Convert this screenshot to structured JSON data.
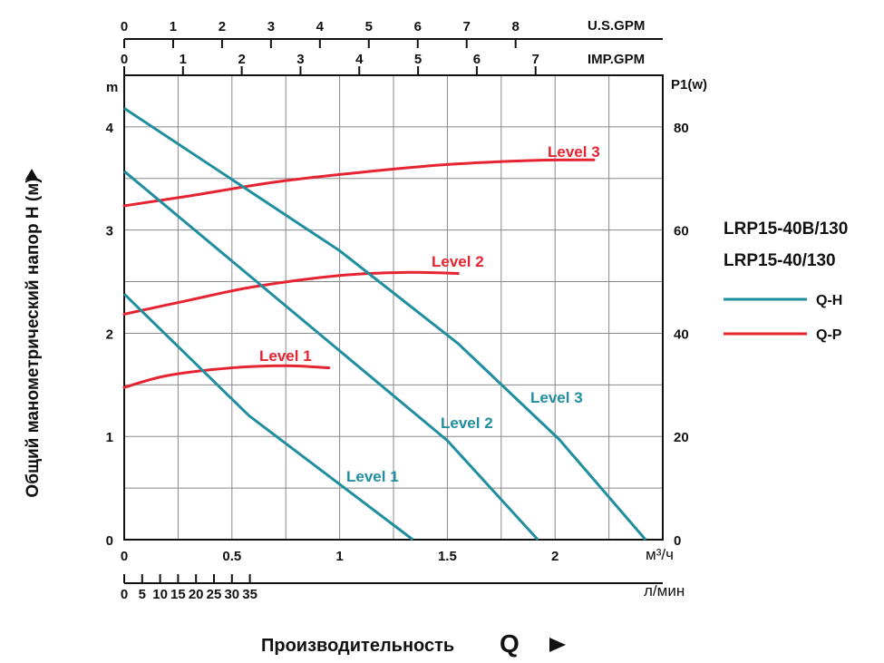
{
  "chart_data": {
    "type": "line",
    "models": [
      "LRP15-40B/130",
      "LRP15-40/130"
    ],
    "ylabel": "Общий манометрический напор Н (м)",
    "xlabel": "Производительность",
    "xlabel_symbol": "Q",
    "y_unit": "m",
    "y_right_unit": "P1(w)",
    "x_unit": "м³/ч",
    "x_unit2": "л/мин",
    "top_unit_usgpm": "U.S.GPM",
    "top_unit_impgpm": "IMP.GPM",
    "xlim": [
      0,
      2.5
    ],
    "ylim": [
      0,
      4.5
    ],
    "y2lim": [
      0,
      90
    ],
    "x_ticks": [
      {
        "v": 0,
        "label": "0"
      },
      {
        "v": 0.5,
        "label": "0.5"
      },
      {
        "v": 1,
        "label": "1"
      },
      {
        "v": 1.5,
        "label": "1.5"
      },
      {
        "v": 2,
        "label": "2"
      }
    ],
    "x_lmin_ticks": [
      {
        "v": 0,
        "label": "0"
      },
      {
        "v": 5,
        "label": "5"
      },
      {
        "v": 10,
        "label": "10"
      },
      {
        "v": 15,
        "label": "15"
      },
      {
        "v": 20,
        "label": "20"
      },
      {
        "v": 25,
        "label": "25"
      },
      {
        "v": 30,
        "label": "30"
      },
      {
        "v": 35,
        "label": "35"
      }
    ],
    "usgpm_ticks": [
      {
        "v": 0,
        "label": "0"
      },
      {
        "v": 1,
        "label": "1"
      },
      {
        "v": 2,
        "label": "2"
      },
      {
        "v": 3,
        "label": "3"
      },
      {
        "v": 4,
        "label": "4"
      },
      {
        "v": 5,
        "label": "5"
      },
      {
        "v": 6,
        "label": "6"
      },
      {
        "v": 7,
        "label": "7"
      },
      {
        "v": 8,
        "label": "8"
      }
    ],
    "impgpm_ticks": [
      {
        "v": 0,
        "label": "0"
      },
      {
        "v": 1,
        "label": "1"
      },
      {
        "v": 2,
        "label": "2"
      },
      {
        "v": 3,
        "label": "3"
      },
      {
        "v": 4,
        "label": "4"
      },
      {
        "v": 5,
        "label": "5"
      },
      {
        "v": 6,
        "label": "6"
      },
      {
        "v": 7,
        "label": "7"
      }
    ],
    "y_ticks": [
      {
        "v": 0,
        "label": "0"
      },
      {
        "v": 1,
        "label": "1"
      },
      {
        "v": 2,
        "label": "2"
      },
      {
        "v": 3,
        "label": "3"
      },
      {
        "v": 4,
        "label": "4"
      }
    ],
    "y2_ticks": [
      {
        "v": 0,
        "label": "0"
      },
      {
        "v": 20,
        "label": "20"
      },
      {
        "v": 40,
        "label": "40"
      },
      {
        "v": 60,
        "label": "60"
      },
      {
        "v": 80,
        "label": "80"
      }
    ],
    "legend": [
      {
        "label": "Q-H",
        "color": "#1f8fa0"
      },
      {
        "label": "Q-P",
        "color": "#e62431"
      }
    ],
    "series_qh": [
      {
        "name": "Level 1",
        "color": "#1f8fa0",
        "points": [
          [
            0,
            2.38
          ],
          [
            0.58,
            1.2
          ],
          [
            1.34,
            0
          ]
        ]
      },
      {
        "name": "Level 2",
        "color": "#1f8fa0",
        "points": [
          [
            0,
            3.57
          ],
          [
            1.5,
            0.96
          ],
          [
            1.92,
            0
          ]
        ]
      },
      {
        "name": "Level 3",
        "color": "#1f8fa0",
        "points": [
          [
            0,
            4.18
          ],
          [
            1.0,
            2.8
          ],
          [
            1.55,
            1.9
          ],
          [
            2.02,
            0.97
          ],
          [
            2.42,
            0
          ]
        ]
      }
    ],
    "series_qp": [
      {
        "name": "Level 1",
        "color": "#e62431",
        "points": [
          [
            0,
            29.5
          ],
          [
            0.2,
            31.8
          ],
          [
            0.5,
            33.3
          ],
          [
            0.75,
            33.7
          ],
          [
            0.95,
            33.3
          ]
        ]
      },
      {
        "name": "Level 2",
        "color": "#e62431",
        "points": [
          [
            0,
            43.7
          ],
          [
            0.3,
            46.4
          ],
          [
            0.6,
            49.0
          ],
          [
            1.0,
            51.2
          ],
          [
            1.3,
            51.8
          ],
          [
            1.55,
            51.6
          ]
        ]
      },
      {
        "name": "Level 3",
        "color": "#e62431",
        "points": [
          [
            0,
            64.7
          ],
          [
            0.3,
            66.6
          ],
          [
            0.7,
            69.3
          ],
          [
            1.1,
            71.2
          ],
          [
            1.5,
            72.7
          ],
          [
            1.9,
            73.5
          ],
          [
            2.18,
            73.6
          ]
        ]
      }
    ]
  }
}
